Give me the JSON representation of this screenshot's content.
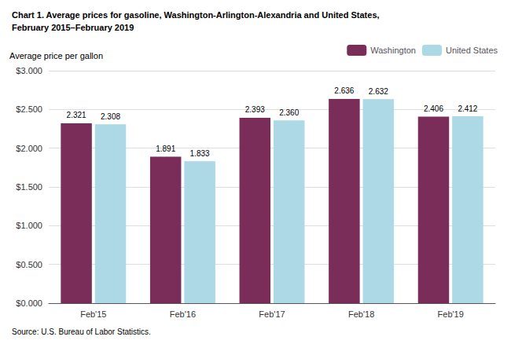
{
  "chart_data": {
    "type": "bar",
    "title": "Chart 1. Average prices for gasoline, Washington-Arlington-Alexandria and United States,",
    "subtitle": "February 2015–February 2019",
    "ylabel": "Average price per gallon",
    "annotations": [
      "Source: U.S. Bureau of Labor Statistics."
    ],
    "categories": [
      "Feb'15",
      "Feb'16",
      "Feb'17",
      "Feb'18",
      "Feb'19"
    ],
    "series": [
      {
        "name": "Washington",
        "color": "#7B2D5A",
        "values": [
          2.321,
          1.891,
          2.393,
          2.636,
          2.406
        ],
        "value_labels": [
          "2.321",
          "1.891",
          "2.393",
          "2.636",
          "2.406"
        ]
      },
      {
        "name": "United States",
        "color": "#ADD8E6",
        "values": [
          2.308,
          1.833,
          2.36,
          2.632,
          2.412
        ],
        "value_labels": [
          "2.308",
          "1.833",
          "2.360",
          "2.632",
          "2.412"
        ]
      }
    ],
    "ylim": [
      0,
      3.0
    ],
    "yticks": [
      {
        "value": 0,
        "label": "$0.000"
      },
      {
        "value": 0.5,
        "label": "$0.500"
      },
      {
        "value": 1.0,
        "label": "$1.000"
      },
      {
        "value": 1.5,
        "label": "$1.500"
      },
      {
        "value": 2.0,
        "label": "$2.000"
      },
      {
        "value": 2.5,
        "label": "$2.500"
      },
      {
        "value": 3.0,
        "label": "$3.000"
      }
    ],
    "grid": true,
    "legend": "upper right",
    "data_labels": true
  }
}
